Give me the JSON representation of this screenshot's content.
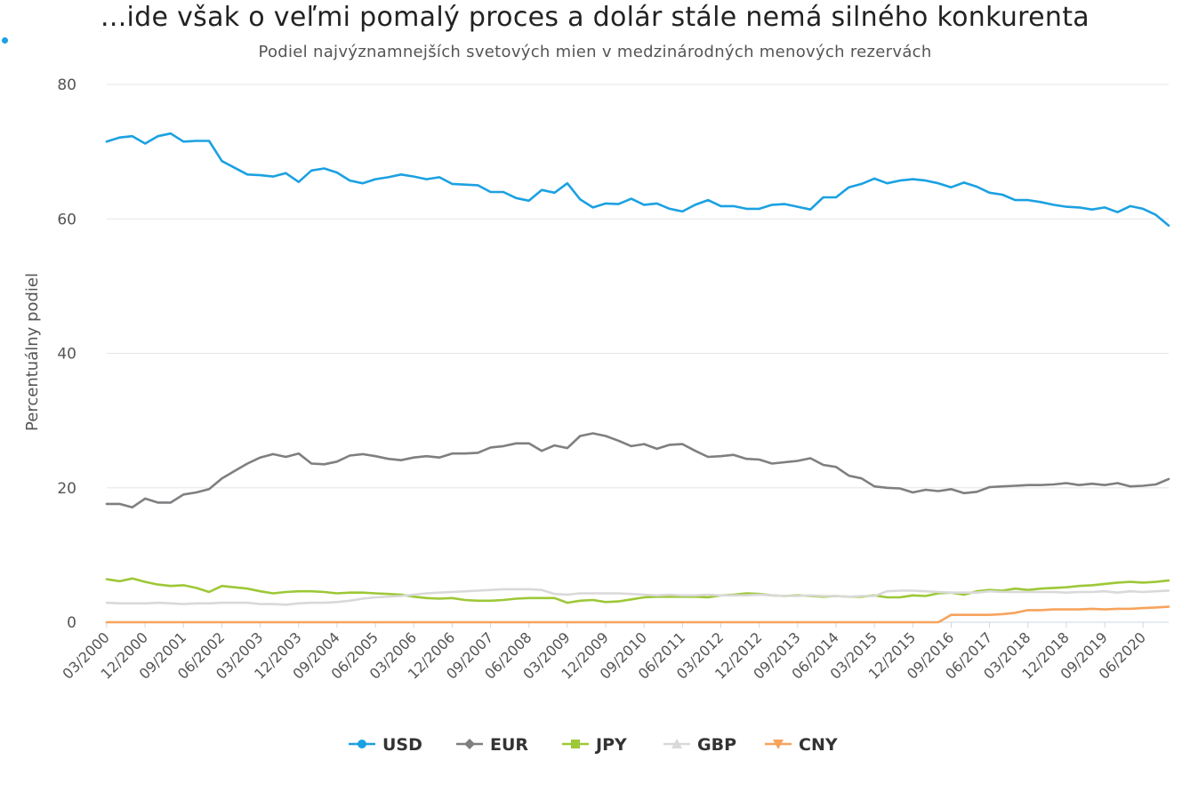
{
  "chart_data": {
    "type": "line",
    "title": "...ide však o veľmi pomalý proces a dolár stále nemá silného konkurenta",
    "subtitle": "Podiel najvýznamnejších svetových mien v medzinárodných menových rezervách",
    "ylabel": "Percentuálny podiel",
    "xlabel": "",
    "ylim": [
      0,
      80
    ],
    "yticks": [
      0,
      20,
      40,
      60,
      80
    ],
    "grid": true,
    "legend_position": "bottom",
    "x_start": "03/2000",
    "x_frequency": "quarterly",
    "xtick_labels": [
      "03/2000",
      "12/2000",
      "09/2001",
      "06/2002",
      "03/2003",
      "12/2003",
      "09/2004",
      "06/2005",
      "03/2006",
      "12/2006",
      "09/2007",
      "06/2008",
      "03/2009",
      "12/2009",
      "09/2010",
      "06/2011",
      "03/2012",
      "12/2012",
      "09/2013",
      "06/2014",
      "03/2015",
      "12/2015",
      "09/2016",
      "06/2017",
      "03/2018",
      "12/2018",
      "09/2019",
      "06/2020"
    ],
    "series": [
      {
        "name": "USD",
        "color": "#1ba1e2",
        "marker": "circle",
        "values": [
          71.5,
          72.1,
          72.3,
          71.2,
          72.3,
          72.7,
          71.5,
          71.6,
          71.6,
          68.6,
          67.6,
          66.6,
          66.5,
          66.3,
          66.8,
          65.5,
          67.2,
          67.5,
          66.9,
          65.7,
          65.3,
          65.9,
          66.2,
          66.6,
          66.3,
          65.9,
          66.2,
          65.2,
          65.1,
          65.0,
          64.0,
          64.0,
          63.1,
          62.7,
          64.3,
          63.9,
          65.3,
          62.9,
          61.7,
          62.3,
          62.2,
          63.0,
          62.1,
          62.3,
          61.5,
          61.1,
          62.1,
          62.8,
          61.9,
          61.9,
          61.5,
          61.5,
          62.1,
          62.2,
          61.8,
          61.4,
          63.2,
          63.2,
          64.7,
          65.2,
          66.0,
          65.3,
          65.7,
          65.9,
          65.7,
          65.3,
          64.7,
          65.4,
          64.8,
          63.9,
          63.6,
          62.8,
          62.8,
          62.5,
          62.1,
          61.8,
          61.7,
          61.4,
          61.7,
          61.0,
          61.9,
          61.5,
          60.6,
          59.0
        ]
      },
      {
        "name": "EUR",
        "color": "#7f7f82",
        "marker": "diamond",
        "values": [
          17.6,
          17.6,
          17.1,
          18.4,
          17.8,
          17.8,
          19.0,
          19.3,
          19.8,
          21.4,
          22.5,
          23.6,
          24.5,
          25.0,
          24.6,
          25.1,
          23.6,
          23.5,
          23.9,
          24.8,
          25.0,
          24.7,
          24.3,
          24.1,
          24.5,
          24.7,
          24.5,
          25.1,
          25.1,
          25.2,
          26.0,
          26.2,
          26.6,
          26.6,
          25.5,
          26.3,
          25.9,
          27.7,
          28.1,
          27.7,
          27.0,
          26.2,
          26.5,
          25.8,
          26.4,
          26.5,
          25.5,
          24.6,
          24.7,
          24.9,
          24.3,
          24.2,
          23.6,
          23.8,
          24.0,
          24.4,
          23.4,
          23.1,
          21.8,
          21.4,
          20.2,
          20.0,
          19.9,
          19.3,
          19.7,
          19.5,
          19.8,
          19.2,
          19.4,
          20.1,
          20.2,
          20.3,
          20.4,
          20.4,
          20.5,
          20.7,
          20.4,
          20.6,
          20.4,
          20.7,
          20.2,
          20.3,
          20.5,
          21.3
        ]
      },
      {
        "name": "JPY",
        "color": "#9dc837",
        "marker": "square",
        "values": [
          6.4,
          6.1,
          6.5,
          6.0,
          5.6,
          5.4,
          5.5,
          5.1,
          4.5,
          5.4,
          5.2,
          5.0,
          4.6,
          4.3,
          4.5,
          4.6,
          4.6,
          4.5,
          4.3,
          4.4,
          4.4,
          4.3,
          4.2,
          4.1,
          3.8,
          3.6,
          3.5,
          3.6,
          3.3,
          3.2,
          3.2,
          3.3,
          3.5,
          3.6,
          3.6,
          3.6,
          2.9,
          3.2,
          3.3,
          3.0,
          3.1,
          3.4,
          3.7,
          3.8,
          3.8,
          3.8,
          3.8,
          3.7,
          4.0,
          4.1,
          4.3,
          4.2,
          4.0,
          3.9,
          4.0,
          3.9,
          3.8,
          3.9,
          3.8,
          3.8,
          4.0,
          3.7,
          3.7,
          4.0,
          3.9,
          4.3,
          4.4,
          4.1,
          4.6,
          4.8,
          4.7,
          5.0,
          4.8,
          5.0,
          5.1,
          5.2,
          5.4,
          5.5,
          5.7,
          5.9,
          6.0,
          5.9,
          6.0,
          6.2
        ]
      },
      {
        "name": "GBP",
        "color": "#d9d9d9",
        "marker": "triangle",
        "values": [
          2.9,
          2.8,
          2.8,
          2.8,
          2.9,
          2.8,
          2.7,
          2.8,
          2.8,
          2.9,
          2.9,
          2.9,
          2.7,
          2.7,
          2.6,
          2.8,
          2.9,
          2.9,
          3.0,
          3.2,
          3.5,
          3.7,
          3.8,
          3.9,
          4.1,
          4.3,
          4.4,
          4.5,
          4.6,
          4.7,
          4.8,
          4.9,
          4.9,
          4.9,
          4.8,
          4.2,
          4.1,
          4.3,
          4.3,
          4.3,
          4.3,
          4.2,
          4.1,
          4.0,
          4.1,
          4.0,
          4.0,
          4.1,
          4.0,
          4.0,
          4.0,
          4.1,
          4.0,
          3.9,
          3.9,
          4.0,
          3.9,
          3.9,
          3.8,
          3.9,
          3.9,
          4.6,
          4.7,
          4.7,
          4.6,
          4.5,
          4.4,
          4.4,
          4.4,
          4.6,
          4.5,
          4.5,
          4.5,
          4.5,
          4.5,
          4.4,
          4.5,
          4.5,
          4.6,
          4.4,
          4.6,
          4.5,
          4.6,
          4.7
        ]
      },
      {
        "name": "CNY",
        "color": "#f7a35c",
        "marker": "triangle-down",
        "values": [
          null,
          null,
          null,
          null,
          null,
          null,
          null,
          null,
          null,
          null,
          null,
          null,
          null,
          null,
          null,
          null,
          null,
          null,
          null,
          null,
          null,
          null,
          null,
          null,
          null,
          null,
          null,
          null,
          null,
          null,
          null,
          null,
          null,
          null,
          null,
          null,
          null,
          null,
          null,
          null,
          null,
          null,
          null,
          null,
          null,
          null,
          null,
          null,
          null,
          null,
          null,
          null,
          null,
          null,
          null,
          null,
          null,
          null,
          null,
          null,
          null,
          null,
          null,
          null,
          null,
          null,
          1.1,
          1.1,
          1.1,
          1.1,
          1.2,
          1.4,
          1.8,
          1.8,
          1.9,
          1.9,
          1.9,
          2.0,
          1.9,
          2.0,
          2.0,
          2.1,
          2.2,
          2.3
        ]
      }
    ]
  }
}
